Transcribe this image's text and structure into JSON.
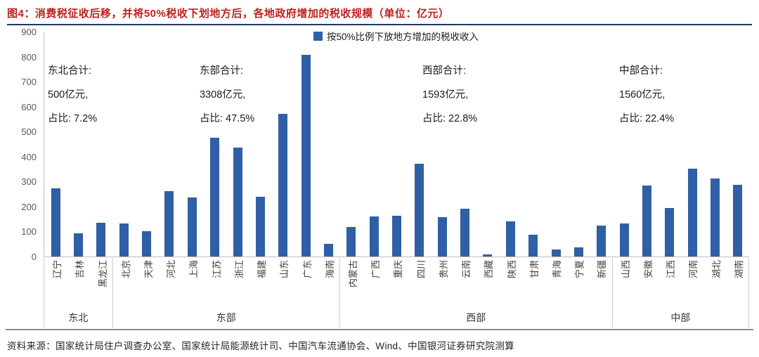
{
  "figure": {
    "title": "图4：消费税征收后移，并将50%税收下划地方后，各地政府增加的税收规模（单位：亿元）",
    "source": "资料来源：国家统计局住户调查办公室、国家统计局能源统计司、中国汽车流通协会、Wind、中国银河证券研究院测算"
  },
  "legend": {
    "label": "按50%比例下放地方增加的税收收入"
  },
  "colors": {
    "bar": "#2f5fa5",
    "title_red": "#c02020",
    "title_rule_navy": "#1f3864",
    "bottom_rule_steel": "#7b8da8"
  },
  "chart_data": {
    "type": "bar",
    "title": "消费税征收后移，并将50%税收下划地方后，各地政府增加的税收规模",
    "unit": "亿元",
    "ylim": [
      0,
      900
    ],
    "yticks": [
      0,
      100,
      200,
      300,
      400,
      500,
      600,
      700,
      800,
      900
    ],
    "grid": false,
    "legend_position": "top-center",
    "legend_entries": [
      "按50%比例下放地方增加的税收收入"
    ],
    "groups": [
      {
        "name": "东北",
        "provinces": [
          "辽宁",
          "吉林",
          "黑龙江"
        ],
        "values": [
          272,
          93,
          135
        ],
        "annotation": [
          "东北合计:",
          "500亿元,",
          "占比: 7.2%"
        ]
      },
      {
        "name": "东部",
        "provinces": [
          "北京",
          "天津",
          "河北",
          "上海",
          "江苏",
          "浙江",
          "福建",
          "山东",
          "广东",
          "海南"
        ],
        "values": [
          132,
          100,
          262,
          237,
          475,
          435,
          238,
          570,
          807,
          52
        ],
        "annotation": [
          "东部合计:",
          "3308亿元,",
          "占比: 47.5%"
        ]
      },
      {
        "name": "西部",
        "provinces": [
          "内蒙古",
          "广西",
          "重庆",
          "四川",
          "贵州",
          "云南",
          "西藏",
          "陕西",
          "甘肃",
          "青海",
          "宁夏",
          "新疆"
        ],
        "values": [
          118,
          160,
          163,
          372,
          158,
          190,
          8,
          142,
          88,
          28,
          38,
          125
        ],
        "annotation": [
          "西部合计:",
          "1593亿元,",
          "占比: 22.8%"
        ]
      },
      {
        "name": "中部",
        "provinces": [
          "山西",
          "安徽",
          "江西",
          "河南",
          "湖北",
          "湖南"
        ],
        "values": [
          131,
          284,
          193,
          351,
          313,
          288
        ],
        "annotation": [
          "中部合计:",
          "1560亿元,",
          "占比: 22.4%"
        ]
      }
    ]
  }
}
